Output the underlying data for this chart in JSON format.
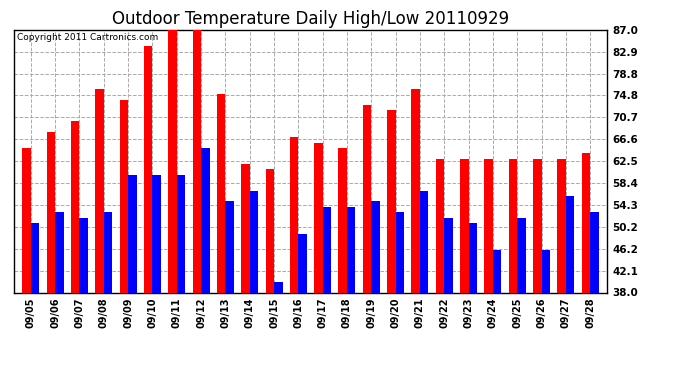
{
  "title": "Outdoor Temperature Daily High/Low 20110929",
  "copyright": "Copyright 2011 Cartronics.com",
  "dates": [
    "09/05",
    "09/06",
    "09/07",
    "09/08",
    "09/09",
    "09/10",
    "09/11",
    "09/12",
    "09/13",
    "09/14",
    "09/15",
    "09/16",
    "09/17",
    "09/18",
    "09/19",
    "09/20",
    "09/21",
    "09/22",
    "09/23",
    "09/24",
    "09/25",
    "09/26",
    "09/27",
    "09/28"
  ],
  "highs": [
    65,
    68,
    70,
    76,
    74,
    84,
    87,
    87,
    75,
    62,
    61,
    67,
    66,
    65,
    73,
    72,
    76,
    63,
    63,
    63,
    63,
    63,
    63,
    64
  ],
  "lows": [
    51,
    53,
    52,
    53,
    60,
    60,
    60,
    65,
    55,
    57,
    40,
    49,
    54,
    54,
    55,
    53,
    57,
    52,
    51,
    46,
    52,
    46,
    56,
    53
  ],
  "y_ticks": [
    38.0,
    42.1,
    46.2,
    50.2,
    54.3,
    58.4,
    62.5,
    66.6,
    70.7,
    74.8,
    78.8,
    82.9,
    87.0
  ],
  "ylim": [
    38.0,
    87.0
  ],
  "ybase": 38.0,
  "bar_width": 0.35,
  "high_color": "#ff0000",
  "low_color": "#0000ff",
  "bg_color": "#ffffff",
  "grid_color": "#aaaaaa",
  "title_fontsize": 12
}
